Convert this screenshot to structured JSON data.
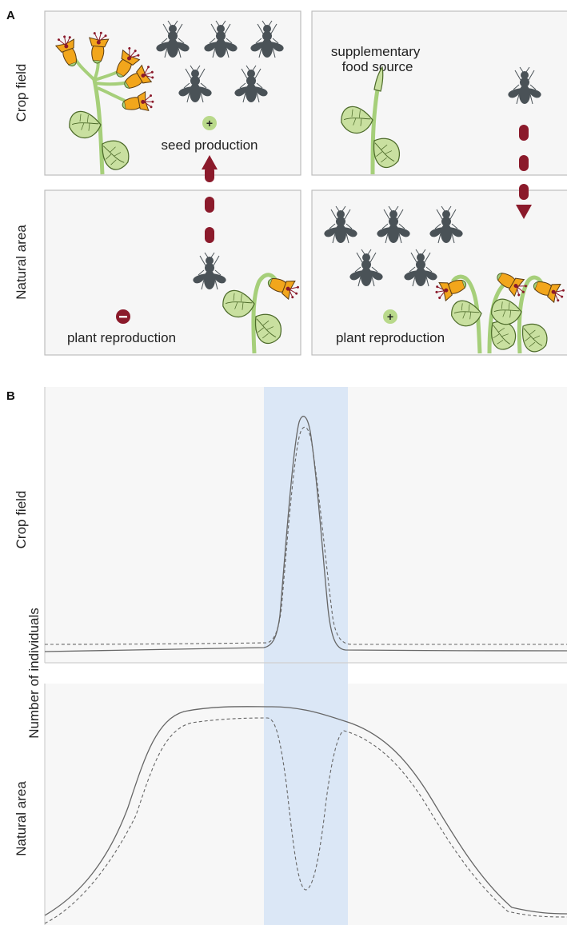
{
  "panel_a": {
    "letter": "A",
    "row_labels": {
      "top": "Crop field",
      "bottom": "Natural area"
    },
    "captions": {
      "seed_production": "seed production",
      "supplementary_food": "supplementary food source",
      "plant_reproduction_left": "plant reproduction",
      "plant_reproduction_right": "plant reproduction"
    },
    "signs": {
      "positive": "+",
      "negative": "−"
    },
    "colors": {
      "arrow": "#8b1a2b",
      "positive_badge": "#b9d98b",
      "negative_badge": "#8b1a2b",
      "bee": "#4a5257",
      "flower": "#f2a61c",
      "leaf": "#c9e0a0",
      "stem": "#a6cf7a"
    }
  },
  "panel_b": {
    "letter": "B",
    "y_label": "Number of individuals",
    "row_labels": {
      "top": "Crop field",
      "bottom": "Natural area"
    },
    "colors": {
      "highlight": "#dbe7f6",
      "line": "#666666"
    }
  }
}
